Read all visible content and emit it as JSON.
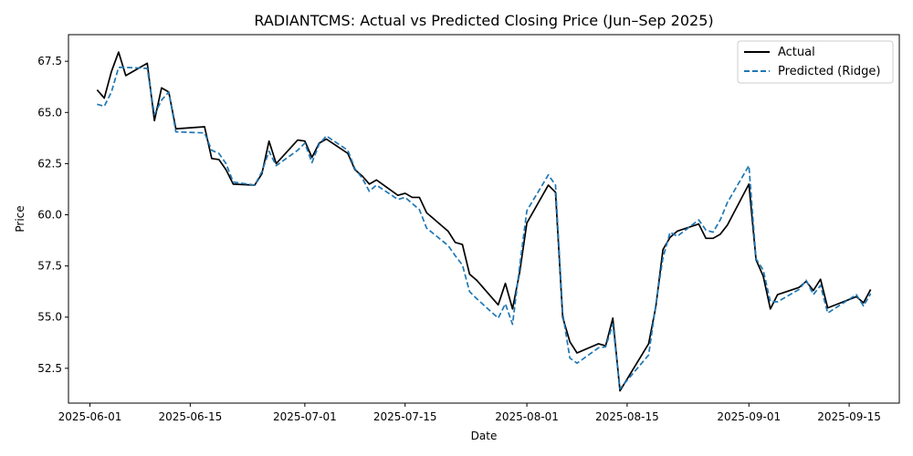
{
  "chart_data": {
    "type": "line",
    "title": "RADIANTCMS: Actual vs Predicted Closing Price (Jun–Sep 2025)",
    "xlabel": "Date",
    "ylabel": "Price",
    "xlim": [
      "2025-05-29",
      "2025-09-22"
    ],
    "ylim": [
      50.8,
      68.8
    ],
    "x_ticks": [
      "2025-06-01",
      "2025-06-15",
      "2025-07-01",
      "2025-07-15",
      "2025-08-01",
      "2025-08-15",
      "2025-09-01",
      "2025-09-15"
    ],
    "y_ticks": [
      52.5,
      55.0,
      57.5,
      60.0,
      62.5,
      65.0,
      67.5
    ],
    "grid": false,
    "legend_position": "top-right",
    "series": [
      {
        "name": "Actual",
        "color": "#000000",
        "style": "solid",
        "points": [
          [
            "2025-06-02",
            66.1
          ],
          [
            "2025-06-03",
            65.7
          ],
          [
            "2025-06-04",
            67.0
          ],
          [
            "2025-06-05",
            67.95
          ],
          [
            "2025-06-06",
            66.8
          ],
          [
            "2025-06-09",
            67.4
          ],
          [
            "2025-06-10",
            64.6
          ],
          [
            "2025-06-11",
            66.2
          ],
          [
            "2025-06-12",
            66.0
          ],
          [
            "2025-06-13",
            64.2
          ],
          [
            "2025-06-17",
            64.3
          ],
          [
            "2025-06-18",
            62.75
          ],
          [
            "2025-06-19",
            62.7
          ],
          [
            "2025-06-20",
            62.2
          ],
          [
            "2025-06-21",
            61.5
          ],
          [
            "2025-06-24",
            61.45
          ],
          [
            "2025-06-25",
            62.0
          ],
          [
            "2025-06-26",
            63.6
          ],
          [
            "2025-06-27",
            62.5
          ],
          [
            "2025-06-30",
            63.65
          ],
          [
            "2025-07-01",
            63.6
          ],
          [
            "2025-07-02",
            62.8
          ],
          [
            "2025-07-03",
            63.5
          ],
          [
            "2025-07-04",
            63.7
          ],
          [
            "2025-07-07",
            63.0
          ],
          [
            "2025-07-08",
            62.2
          ],
          [
            "2025-07-09",
            61.9
          ],
          [
            "2025-07-10",
            61.5
          ],
          [
            "2025-07-11",
            61.7
          ],
          [
            "2025-07-14",
            60.95
          ],
          [
            "2025-07-15",
            61.05
          ],
          [
            "2025-07-16",
            60.85
          ],
          [
            "2025-07-17",
            60.85
          ],
          [
            "2025-07-18",
            60.1
          ],
          [
            "2025-07-21",
            59.2
          ],
          [
            "2025-07-22",
            58.65
          ],
          [
            "2025-07-23",
            58.55
          ],
          [
            "2025-07-24",
            57.1
          ],
          [
            "2025-07-25",
            56.8
          ],
          [
            "2025-07-28",
            55.6
          ],
          [
            "2025-07-29",
            56.65
          ],
          [
            "2025-07-30",
            55.4
          ],
          [
            "2025-07-31",
            57.2
          ],
          [
            "2025-08-01",
            59.6
          ],
          [
            "2025-08-04",
            61.45
          ],
          [
            "2025-08-05",
            61.1
          ],
          [
            "2025-08-06",
            55.0
          ],
          [
            "2025-08-07",
            53.8
          ],
          [
            "2025-08-08",
            53.25
          ],
          [
            "2025-08-11",
            53.7
          ],
          [
            "2025-08-12",
            53.6
          ],
          [
            "2025-08-13",
            54.95
          ],
          [
            "2025-08-14",
            51.4
          ],
          [
            "2025-08-18",
            53.7
          ],
          [
            "2025-08-19",
            55.5
          ],
          [
            "2025-08-20",
            58.3
          ],
          [
            "2025-08-21",
            58.9
          ],
          [
            "2025-08-22",
            59.2
          ],
          [
            "2025-08-25",
            59.55
          ],
          [
            "2025-08-26",
            58.85
          ],
          [
            "2025-08-27",
            58.85
          ],
          [
            "2025-08-28",
            59.05
          ],
          [
            "2025-08-29",
            59.5
          ],
          [
            "2025-09-01",
            61.5
          ],
          [
            "2025-09-02",
            57.8
          ],
          [
            "2025-09-03",
            57.0
          ],
          [
            "2025-09-04",
            55.4
          ],
          [
            "2025-09-05",
            56.1
          ],
          [
            "2025-09-08",
            56.45
          ],
          [
            "2025-09-09",
            56.75
          ],
          [
            "2025-09-10",
            56.3
          ],
          [
            "2025-09-11",
            56.85
          ],
          [
            "2025-09-12",
            55.45
          ],
          [
            "2025-09-16",
            56.0
          ],
          [
            "2025-09-17",
            55.7
          ],
          [
            "2025-09-18",
            56.35
          ]
        ]
      },
      {
        "name": "Predicted (Ridge)",
        "color": "#1f77b4",
        "style": "dashed",
        "points": [
          [
            "2025-06-02",
            65.4
          ],
          [
            "2025-06-03",
            65.3
          ],
          [
            "2025-06-04",
            66.0
          ],
          [
            "2025-06-05",
            67.2
          ],
          [
            "2025-06-06",
            67.2
          ],
          [
            "2025-06-09",
            67.15
          ],
          [
            "2025-06-10",
            64.9
          ],
          [
            "2025-06-11",
            65.6
          ],
          [
            "2025-06-12",
            66.0
          ],
          [
            "2025-06-13",
            64.05
          ],
          [
            "2025-06-17",
            64.0
          ],
          [
            "2025-06-18",
            63.15
          ],
          [
            "2025-06-19",
            63.0
          ],
          [
            "2025-06-20",
            62.5
          ],
          [
            "2025-06-21",
            61.6
          ],
          [
            "2025-06-24",
            61.45
          ],
          [
            "2025-06-25",
            62.1
          ],
          [
            "2025-06-26",
            63.1
          ],
          [
            "2025-06-27",
            62.4
          ],
          [
            "2025-06-30",
            63.15
          ],
          [
            "2025-07-01",
            63.5
          ],
          [
            "2025-07-02",
            62.55
          ],
          [
            "2025-07-03",
            63.45
          ],
          [
            "2025-07-04",
            63.85
          ],
          [
            "2025-07-07",
            63.15
          ],
          [
            "2025-07-08",
            62.25
          ],
          [
            "2025-07-09",
            61.8
          ],
          [
            "2025-07-10",
            61.15
          ],
          [
            "2025-07-11",
            61.45
          ],
          [
            "2025-07-14",
            60.75
          ],
          [
            "2025-07-15",
            60.85
          ],
          [
            "2025-07-16",
            60.55
          ],
          [
            "2025-07-17",
            60.25
          ],
          [
            "2025-07-18",
            59.35
          ],
          [
            "2025-07-21",
            58.5
          ],
          [
            "2025-07-22",
            58.0
          ],
          [
            "2025-07-23",
            57.55
          ],
          [
            "2025-07-24",
            56.25
          ],
          [
            "2025-07-25",
            55.9
          ],
          [
            "2025-07-28",
            54.95
          ],
          [
            "2025-07-29",
            55.65
          ],
          [
            "2025-07-30",
            54.65
          ],
          [
            "2025-07-31",
            57.5
          ],
          [
            "2025-08-01",
            60.2
          ],
          [
            "2025-08-04",
            61.95
          ],
          [
            "2025-08-05",
            61.45
          ],
          [
            "2025-08-06",
            55.2
          ],
          [
            "2025-08-07",
            53.0
          ],
          [
            "2025-08-08",
            52.75
          ],
          [
            "2025-08-11",
            53.5
          ],
          [
            "2025-08-12",
            53.55
          ],
          [
            "2025-08-13",
            54.65
          ],
          [
            "2025-08-14",
            51.5
          ],
          [
            "2025-08-18",
            53.15
          ],
          [
            "2025-08-19",
            55.6
          ],
          [
            "2025-08-20",
            57.9
          ],
          [
            "2025-08-21",
            59.15
          ],
          [
            "2025-08-22",
            58.95
          ],
          [
            "2025-08-25",
            59.75
          ],
          [
            "2025-08-26",
            59.25
          ],
          [
            "2025-08-27",
            59.15
          ],
          [
            "2025-08-28",
            59.75
          ],
          [
            "2025-08-29",
            60.6
          ],
          [
            "2025-09-01",
            62.4
          ],
          [
            "2025-09-02",
            57.85
          ],
          [
            "2025-09-03",
            57.3
          ],
          [
            "2025-09-04",
            55.75
          ],
          [
            "2025-09-05",
            55.75
          ],
          [
            "2025-09-08",
            56.35
          ],
          [
            "2025-09-09",
            56.8
          ],
          [
            "2025-09-10",
            56.1
          ],
          [
            "2025-09-11",
            56.55
          ],
          [
            "2025-09-12",
            55.2
          ],
          [
            "2025-09-16",
            56.1
          ],
          [
            "2025-09-17",
            55.55
          ],
          [
            "2025-09-18",
            56.15
          ]
        ]
      }
    ]
  }
}
